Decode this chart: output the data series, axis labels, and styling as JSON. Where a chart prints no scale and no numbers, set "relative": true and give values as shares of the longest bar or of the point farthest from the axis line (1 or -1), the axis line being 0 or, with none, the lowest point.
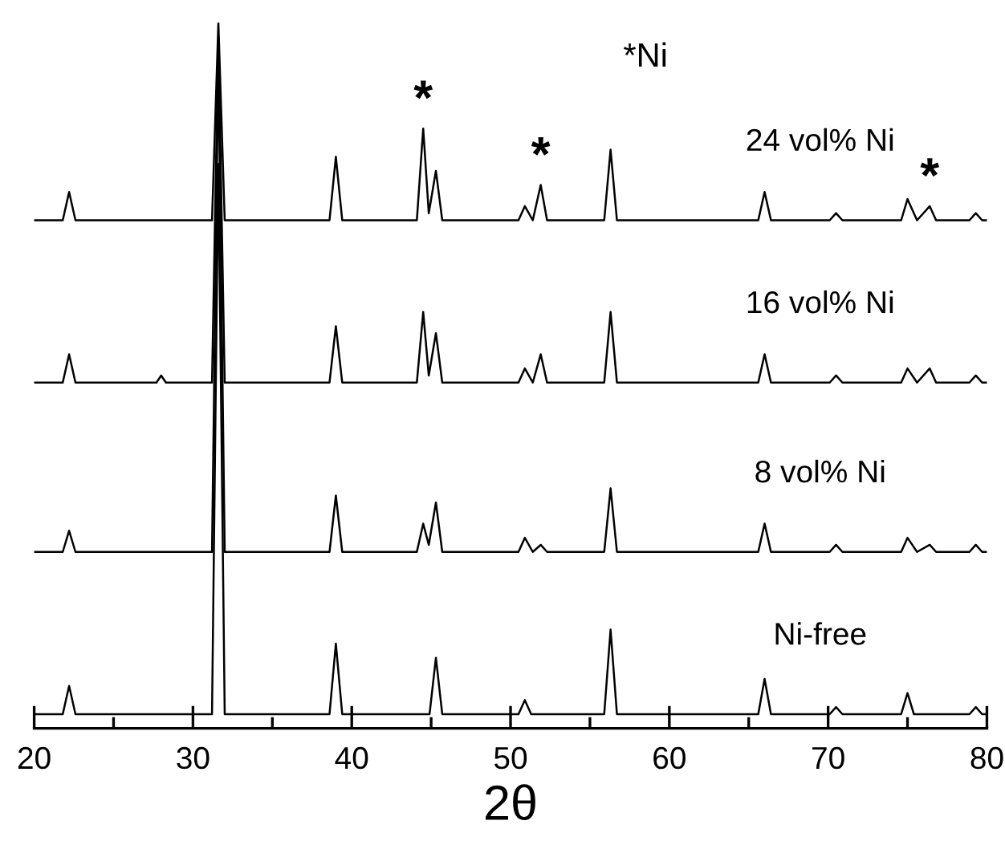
{
  "chart_data": {
    "type": "line",
    "relative": true,
    "xlabel": "2θ",
    "xlim": [
      20,
      80
    ],
    "xticks": [
      20,
      {
        "value": 25,
        "label": null
      },
      30,
      {
        "value": 35,
        "label": null
      },
      40,
      {
        "value": 45,
        "label": null
      },
      50,
      {
        "value": 55,
        "label": null
      },
      60,
      {
        "value": 65,
        "label": null
      },
      70,
      {
        "value": 75,
        "label": null
      },
      80
    ],
    "grid": false,
    "legend": false,
    "marker": "none",
    "line_style": "solid",
    "series": [
      {
        "name": "Ni-free",
        "color": "#000000",
        "x": [
          20,
          21.8,
          22.2,
          22.6,
          31.2,
          31.6,
          32.0,
          38.6,
          39.0,
          39.4,
          44.9,
          45.3,
          45.7,
          50.5,
          50.9,
          51.3,
          55.9,
          56.3,
          56.7,
          65.6,
          66.0,
          66.4,
          70.1,
          70.5,
          70.9,
          74.6,
          75.0,
          75.4,
          78.9,
          79.3,
          79.7,
          80
        ],
        "values": [
          0.02,
          0.02,
          0.06,
          0.02,
          0.02,
          0.8,
          0.02,
          0.02,
          0.12,
          0.02,
          0.02,
          0.1,
          0.02,
          0.02,
          0.04,
          0.02,
          0.02,
          0.14,
          0.02,
          0.02,
          0.07,
          0.02,
          0.02,
          0.03,
          0.02,
          0.02,
          0.05,
          0.02,
          0.02,
          0.03,
          0.02,
          0.02
        ]
      },
      {
        "name": "8 vol% Ni",
        "color": "#000000",
        "x": [
          20,
          21.8,
          22.2,
          22.6,
          31.2,
          31.6,
          32.0,
          38.6,
          39.0,
          39.4,
          44.1,
          44.5,
          44.85,
          45.3,
          45.7,
          50.5,
          50.9,
          51.4,
          51.9,
          52.3,
          55.9,
          56.3,
          56.7,
          65.6,
          66.0,
          66.4,
          70.1,
          70.5,
          70.9,
          74.6,
          75.0,
          75.6,
          76.4,
          76.8,
          78.9,
          79.3,
          79.7,
          80
        ],
        "values": [
          0.25,
          0.25,
          0.28,
          0.25,
          0.25,
          0.95,
          0.25,
          0.25,
          0.33,
          0.25,
          0.25,
          0.29,
          0.26,
          0.32,
          0.25,
          0.25,
          0.27,
          0.25,
          0.26,
          0.25,
          0.25,
          0.34,
          0.25,
          0.25,
          0.29,
          0.25,
          0.25,
          0.26,
          0.25,
          0.25,
          0.27,
          0.25,
          0.26,
          0.25,
          0.25,
          0.26,
          0.25,
          0.25
        ]
      },
      {
        "name": "16 vol% Ni",
        "color": "#000000",
        "x": [
          20,
          21.8,
          22.2,
          22.6,
          27.7,
          28.0,
          28.3,
          31.2,
          31.6,
          32.0,
          38.6,
          39.0,
          39.4,
          44.1,
          44.5,
          44.85,
          45.3,
          45.7,
          50.5,
          50.9,
          51.4,
          51.9,
          52.3,
          55.9,
          56.3,
          56.7,
          65.6,
          66.0,
          66.4,
          70.1,
          70.5,
          70.9,
          74.6,
          75.0,
          75.6,
          76.4,
          76.8,
          78.9,
          79.3,
          79.7,
          80
        ],
        "values": [
          0.49,
          0.49,
          0.53,
          0.49,
          0.49,
          0.5,
          0.49,
          0.49,
          0.98,
          0.49,
          0.49,
          0.57,
          0.49,
          0.49,
          0.59,
          0.5,
          0.56,
          0.49,
          0.49,
          0.51,
          0.49,
          0.53,
          0.49,
          0.49,
          0.59,
          0.49,
          0.49,
          0.53,
          0.49,
          0.49,
          0.5,
          0.49,
          0.49,
          0.51,
          0.49,
          0.51,
          0.49,
          0.49,
          0.5,
          0.49,
          0.49
        ]
      },
      {
        "name": "24 vol% Ni",
        "color": "#000000",
        "x": [
          20,
          21.8,
          22.2,
          22.6,
          31.2,
          31.6,
          32.0,
          38.6,
          39.0,
          39.4,
          44.1,
          44.5,
          44.85,
          45.3,
          45.7,
          50.5,
          50.9,
          51.4,
          51.9,
          52.3,
          55.9,
          56.3,
          56.7,
          65.6,
          66.0,
          66.4,
          70.1,
          70.5,
          70.9,
          74.6,
          75.0,
          75.6,
          76.4,
          76.8,
          78.9,
          79.3,
          79.7,
          80
        ],
        "values": [
          0.72,
          0.72,
          0.76,
          0.72,
          0.72,
          1.0,
          0.72,
          0.72,
          0.81,
          0.72,
          0.72,
          0.85,
          0.73,
          0.79,
          0.72,
          0.72,
          0.74,
          0.72,
          0.77,
          0.72,
          0.72,
          0.82,
          0.72,
          0.72,
          0.76,
          0.72,
          0.72,
          0.73,
          0.72,
          0.72,
          0.75,
          0.72,
          0.74,
          0.72,
          0.72,
          0.73,
          0.72,
          0.72
        ]
      }
    ],
    "annotations": [
      "*Ni",
      {
        "text": "*",
        "x": 44.5,
        "y": 0.85
      },
      {
        "text": "*",
        "x": 51.9,
        "y": 0.77
      },
      {
        "text": "*",
        "x": 76.4,
        "y": 0.74
      }
    ]
  }
}
